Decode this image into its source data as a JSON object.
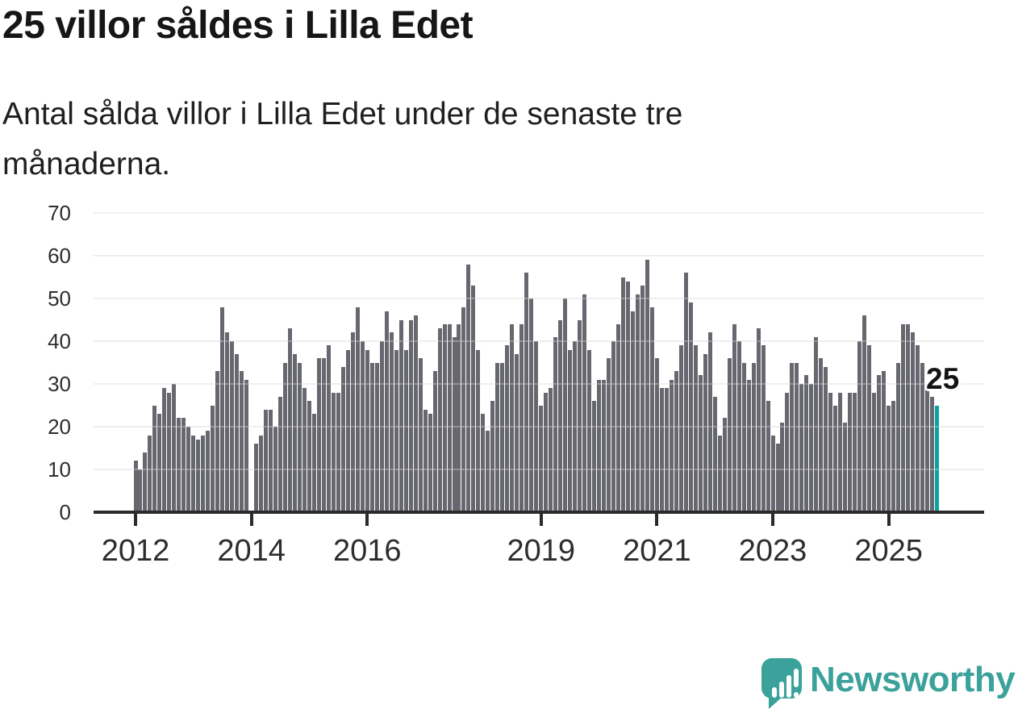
{
  "header": {
    "title": "25 villor såldes i Lilla Edet",
    "subtitle_lines": [
      "Antal sålda villor i Lilla Edet under de senaste tre",
      "månaderna."
    ]
  },
  "chart_data": {
    "type": "bar",
    "title": "25 villor såldes i Lilla Edet",
    "subtitle": "Antal sålda villor i Lilla Edet under de senaste tre månaderna.",
    "unit": "sålda villor (rullande 3 månader)",
    "frequency": "monthly",
    "start_month": "2012-01",
    "values": [
      12,
      10,
      14,
      18,
      25,
      23,
      29,
      28,
      30,
      22,
      22,
      20,
      18,
      17,
      18,
      19,
      25,
      33,
      48,
      42,
      40,
      37,
      33,
      31,
      0,
      16,
      18,
      24,
      24,
      20,
      27,
      35,
      43,
      37,
      35,
      29,
      26,
      23,
      36,
      36,
      39,
      28,
      28,
      34,
      38,
      42,
      48,
      40,
      38,
      35,
      35,
      40,
      47,
      42,
      38,
      45,
      38,
      45,
      46,
      36,
      24,
      23,
      33,
      43,
      44,
      44,
      41,
      44,
      48,
      58,
      53,
      38,
      23,
      19,
      26,
      35,
      35,
      39,
      44,
      37,
      44,
      56,
      50,
      40,
      25,
      28,
      29,
      41,
      45,
      50,
      38,
      40,
      45,
      51,
      38,
      26,
      31,
      31,
      36,
      40,
      44,
      55,
      54,
      47,
      51,
      53,
      59,
      48,
      36,
      29,
      29,
      31,
      33,
      39,
      56,
      49,
      39,
      32,
      37,
      42,
      27,
      18,
      22,
      36,
      44,
      40,
      35,
      31,
      35,
      43,
      39,
      26,
      18,
      16,
      21,
      28,
      35,
      35,
      30,
      32,
      30,
      41,
      36,
      34,
      28,
      25,
      28,
      21,
      28,
      28,
      40,
      46,
      39,
      28,
      32,
      33,
      25,
      26,
      35,
      44,
      44,
      42,
      39,
      35,
      30,
      27,
      25
    ],
    "highlight_index": 166,
    "last_value": 25,
    "annotation": {
      "text": "25"
    },
    "y_ticks": [
      0,
      10,
      20,
      30,
      40,
      50,
      60,
      70
    ],
    "ylim": [
      0,
      70
    ],
    "x_ticks": [
      {
        "label": "2012",
        "month_index": 0
      },
      {
        "label": "2014",
        "month_index": 24
      },
      {
        "label": "2016",
        "month_index": 48
      },
      {
        "label": "2019",
        "month_index": 84
      },
      {
        "label": "2021",
        "month_index": 108
      },
      {
        "label": "2023",
        "month_index": 132
      },
      {
        "label": "2025",
        "month_index": 156
      }
    ],
    "grid": true,
    "legend": "none",
    "colors": {
      "bar": "#67676f",
      "highlight": "#0fa0a0",
      "grid": "#e9e9e9",
      "axis": "#2b2b2b",
      "annotation_text": "#141414"
    }
  },
  "branding": {
    "logo_text": "Newsworthy",
    "logo_icon": "newsworthy-speech-bubble-chart-icon",
    "logo_color": "#3ba19b"
  }
}
